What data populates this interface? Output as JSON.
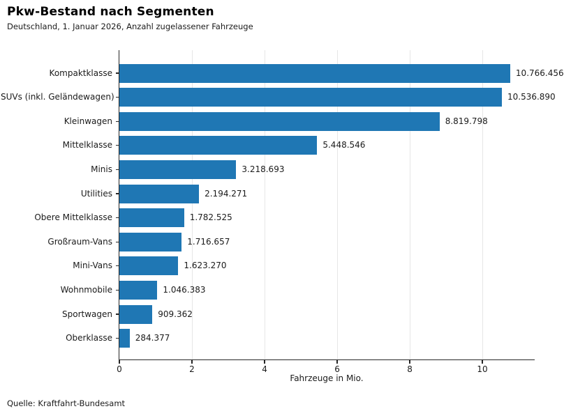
{
  "header": {
    "title": "Pkw-Bestand nach Segmenten",
    "subtitle": "Deutschland, 1. Januar 2026, Anzahl zugelassener Fahrzeuge"
  },
  "chart_data": {
    "type": "bar",
    "orientation": "horizontal",
    "title": "Pkw-Bestand nach Segmenten",
    "subtitle": "Deutschland, 1. Januar 2026, Anzahl zugelassener Fahrzeuge",
    "categories": [
      "Kompaktklasse",
      "SUVs (inkl. Geländewagen)",
      "Kleinwagen",
      "Mittelklasse",
      "Minis",
      "Utilities",
      "Obere Mittelklasse",
      "Großraum-Vans",
      "Mini-Vans",
      "Wohnmobile",
      "Sportwagen",
      "Oberklasse"
    ],
    "values": [
      10766456,
      10536890,
      8819798,
      5448546,
      3218693,
      2194271,
      1782525,
      1716657,
      1623270,
      1046383,
      909362,
      284377
    ],
    "value_labels": [
      "10.766.456",
      "10.536.890",
      "8.819.798",
      "5.448.546",
      "3.218.693",
      "2.194.271",
      "1.782.525",
      "1.716.657",
      "1.623.270",
      "1.046.383",
      "909.362",
      "284.377"
    ],
    "xlabel": "Fahrzeuge in Mio.",
    "xticks": [
      0,
      2,
      4,
      6,
      8,
      10
    ],
    "xlim": [
      0,
      11.46
    ],
    "grid": true,
    "legend": false,
    "bar_color": "#1f77b4",
    "gridline_color": "#e6e6e6",
    "spine_color": "#262626"
  },
  "footer": {
    "source": "Quelle: Kraftfahrt-Bundesamt"
  }
}
